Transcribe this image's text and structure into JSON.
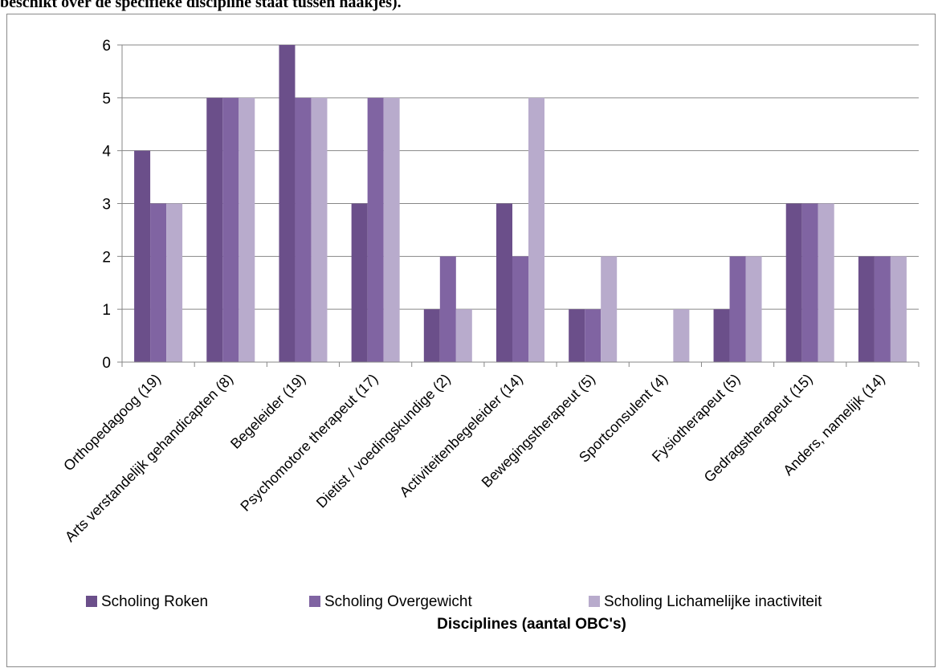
{
  "caption": "beschikt over de specifieke discipline staat tussen haakjes).",
  "chart_data": {
    "type": "bar",
    "title": "",
    "xlabel": "Disciplines (aantal OBC's)",
    "ylabel": "",
    "ylim": [
      0,
      6
    ],
    "yticks": [
      0,
      1,
      2,
      3,
      4,
      5,
      6
    ],
    "grid": true,
    "legend_position": "bottom",
    "categories": [
      "Orthopedagoog (19)",
      "Arts verstandelijk gehandicapten (8)",
      "Begeleider (19)",
      "Psychomotore therapeut (17)",
      "Dietist / voedingskundige (2)",
      "Activiteitenbegeleider (14)",
      "Bewegingstherapeut (5)",
      "Sportconsulent (4)",
      "Fysiotherapeut (5)",
      "Gedragstherapeut (15)",
      "Anders, namelijk (14)"
    ],
    "series": [
      {
        "name": "Scholing Roken",
        "color": "#6b4f8a",
        "values": [
          4,
          5,
          6,
          3,
          1,
          3,
          1,
          0,
          1,
          3,
          2
        ]
      },
      {
        "name": "Scholing Overgewicht",
        "color": "#8064a2",
        "values": [
          3,
          5,
          5,
          5,
          2,
          2,
          1,
          0,
          2,
          3,
          2
        ]
      },
      {
        "name": "Scholing Lichamelijke inactiviteit",
        "color": "#b8abcc",
        "values": [
          3,
          5,
          5,
          5,
          1,
          5,
          2,
          1,
          2,
          3,
          2
        ]
      }
    ]
  }
}
